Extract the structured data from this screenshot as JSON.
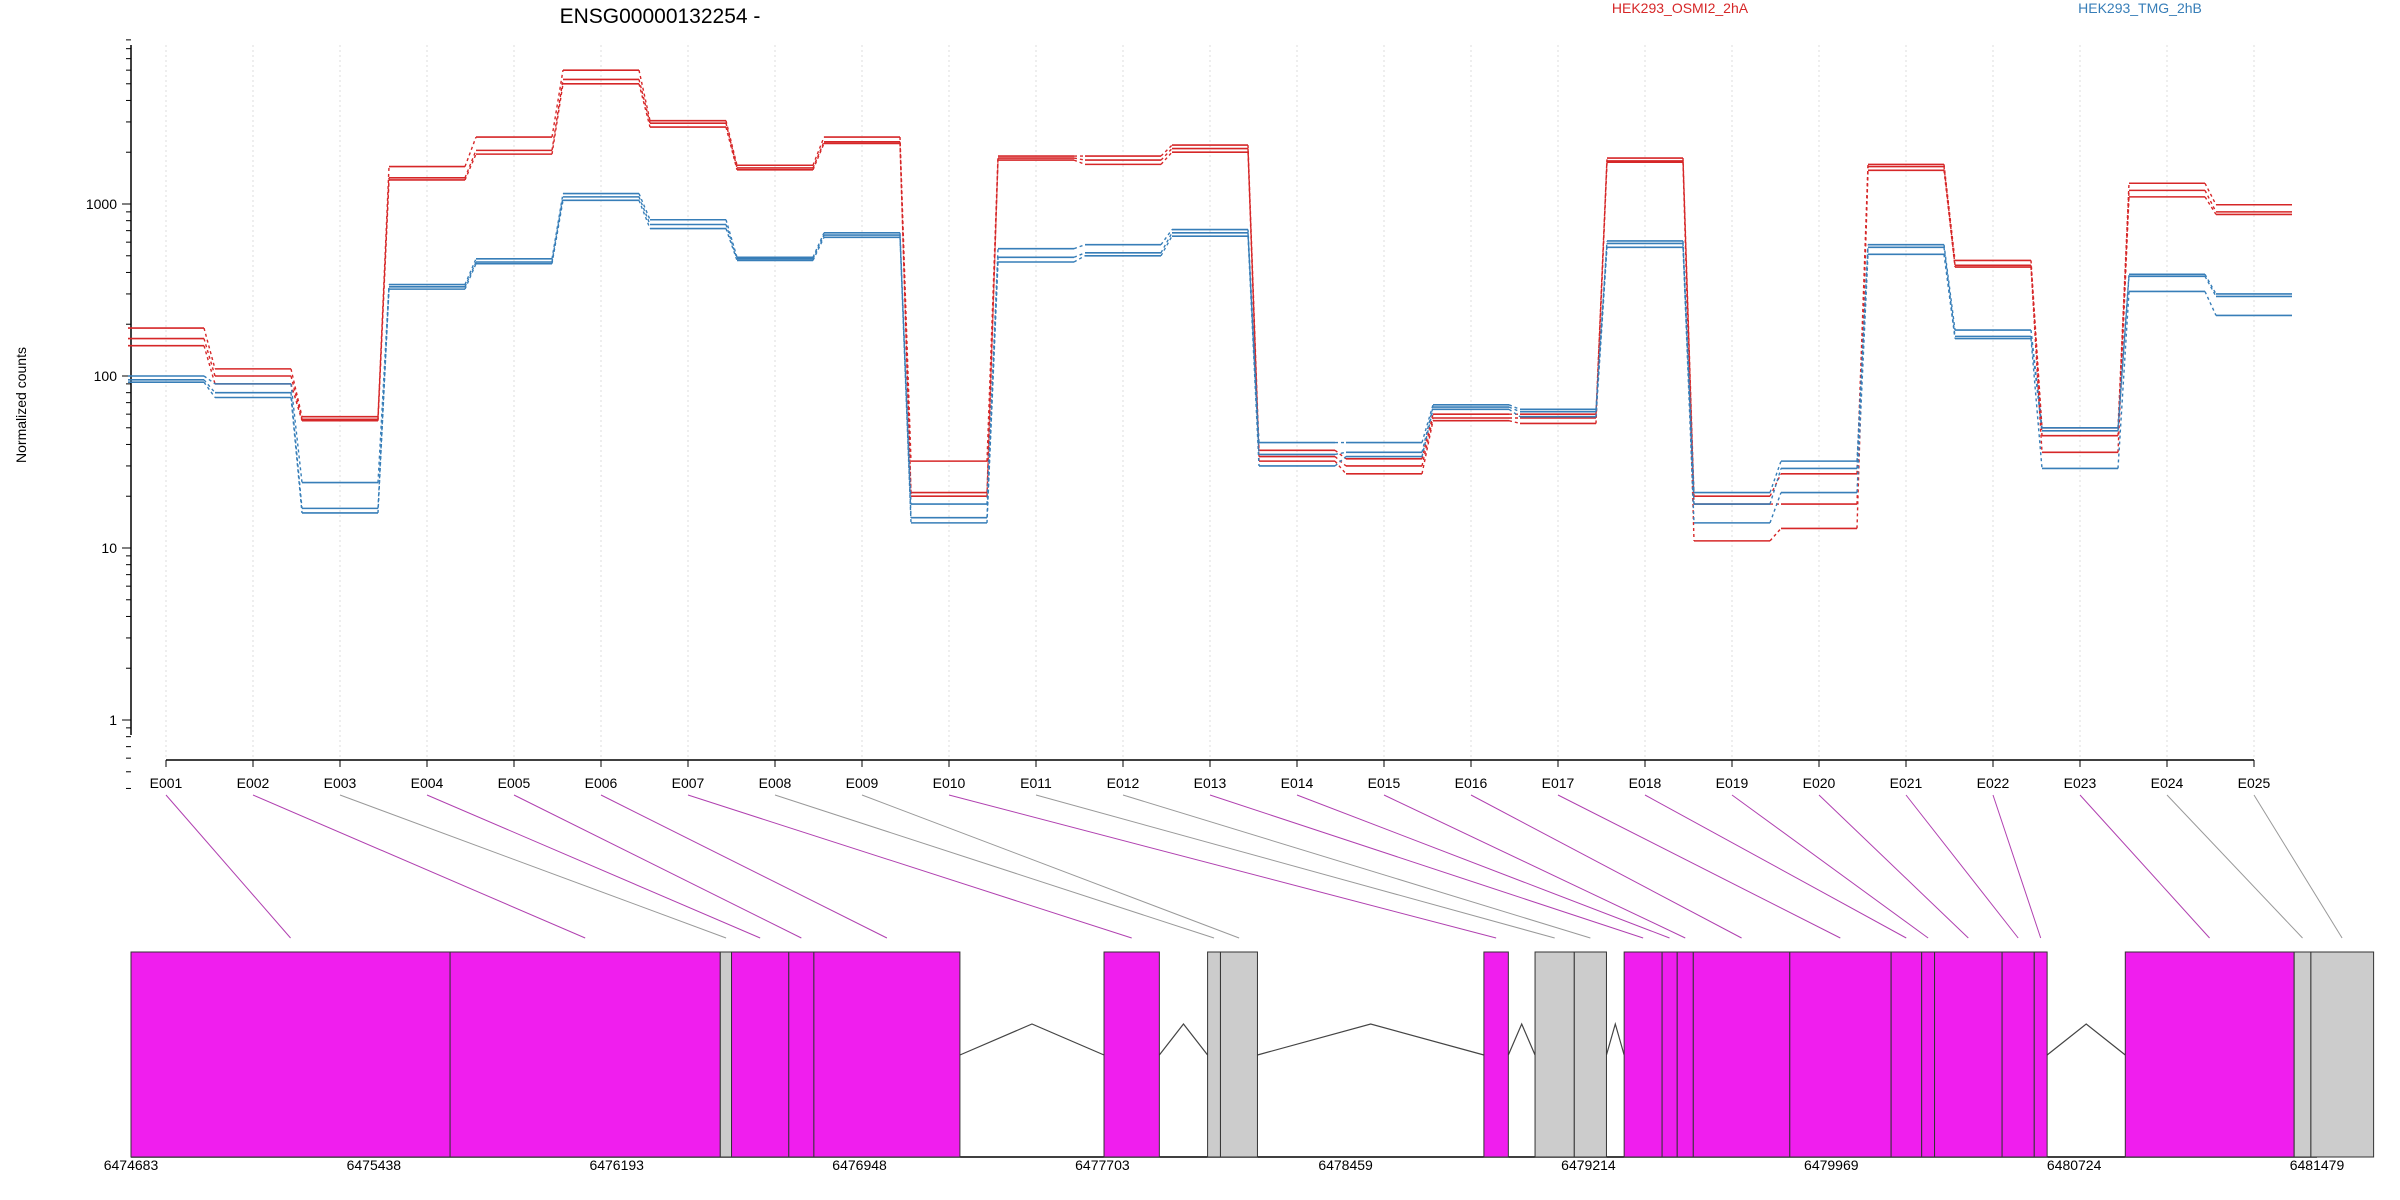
{
  "chart_data": [
    {
      "type": "line",
      "title": "ENSG00000132254 -",
      "xlabel": "",
      "ylabel": "Normalized counts",
      "yscale": "log",
      "ylim": [
        0.35,
        9000
      ],
      "y_ticks": [
        1,
        10,
        100,
        1000
      ],
      "y_tick_labels": [
        "1",
        "10",
        "100",
        "1000"
      ],
      "grid": "vertical-dotted",
      "legend_placement": "top",
      "categories": [
        "E001",
        "E002",
        "E003",
        "E004",
        "E005",
        "E006",
        "E007",
        "E008",
        "E009",
        "E010",
        "E011",
        "E012",
        "E013",
        "E014",
        "E015",
        "E016",
        "E017",
        "E018",
        "E019",
        "E020",
        "E021",
        "E022",
        "E023",
        "E024",
        "E025"
      ],
      "groups": [
        {
          "name": "HEK293_OSMI2_2hA",
          "color": "#d62728",
          "series": [
            {
              "values": [
                190,
                110,
                58,
                1650,
                2450,
                6000,
                3050,
                1680,
                2450,
                32,
                1900,
                1900,
                2200,
                37,
                33,
                60,
                60,
                1850,
                20,
                27,
                1700,
                470,
                50,
                1320,
                990
              ]
            },
            {
              "values": [
                165,
                100,
                56,
                1420,
                2050,
                5300,
                2950,
                1620,
                2300,
                21,
                1850,
                1800,
                2100,
                34,
                30,
                57,
                57,
                1780,
                18,
                18,
                1650,
                440,
                45,
                1200,
                900
              ]
            },
            {
              "values": [
                150,
                90,
                55,
                1380,
                1950,
                5000,
                2800,
                1580,
                2250,
                20,
                1800,
                1700,
                2000,
                32,
                27,
                55,
                53,
                1750,
                11,
                13,
                1570,
                430,
                36,
                1100,
                870
              ]
            }
          ]
        },
        {
          "name": "HEK293_TMG_2hB",
          "color": "#377eb8",
          "series": [
            {
              "values": [
                100,
                90,
                24,
                340,
                480,
                1150,
                810,
                490,
                680,
                18,
                550,
                580,
                710,
                41,
                41,
                68,
                64,
                610,
                21,
                32,
                580,
                185,
                50,
                390,
                300
              ]
            },
            {
              "values": [
                95,
                80,
                17,
                330,
                460,
                1100,
                760,
                480,
                660,
                15,
                490,
                520,
                680,
                35,
                36,
                66,
                62,
                590,
                18,
                29,
                560,
                170,
                48,
                380,
                290
              ]
            },
            {
              "values": [
                92,
                75,
                16,
                320,
                450,
                1050,
                720,
                470,
                640,
                14,
                460,
                500,
                650,
                30,
                34,
                64,
                58,
                560,
                14,
                21,
                510,
                165,
                29,
                310,
                225
              ]
            }
          ]
        }
      ]
    },
    {
      "type": "gene-model",
      "x_ticks": [
        6474683,
        6475438,
        6476193,
        6476948,
        6477703,
        6478459,
        6479214,
        6479969,
        6480724,
        6481479
      ],
      "x_tick_labels": [
        "6474683",
        "6475438",
        "6476193",
        "6476948",
        "6477703",
        "6478459",
        "6479214",
        "6479969",
        "6480724",
        "6481479"
      ],
      "xlim": [
        6474683,
        6481479
      ],
      "colors": {
        "tested": "#f01eee",
        "not_tested": "#cccccc",
        "connector_tested": "#b040b0",
        "connector_other": "#999999",
        "outline": "#333333"
      },
      "exon_blocks": [
        {
          "start": 6474683,
          "end": 6475675,
          "tested": true
        },
        {
          "start": 6475675,
          "end": 6476515,
          "tested": true
        },
        {
          "start": 6476515,
          "end": 6476550,
          "tested": false
        },
        {
          "start": 6476550,
          "end": 6476728,
          "tested": true
        },
        {
          "start": 6476728,
          "end": 6476806,
          "tested": true
        },
        {
          "start": 6476806,
          "end": 6477260,
          "tested": true
        },
        {
          "start": 6477708,
          "end": 6477880,
          "tested": true
        },
        {
          "start": 6478030,
          "end": 6478070,
          "tested": false
        },
        {
          "start": 6478070,
          "end": 6478185,
          "tested": false
        },
        {
          "start": 6478889,
          "end": 6478965,
          "tested": true
        },
        {
          "start": 6479048,
          "end": 6479170,
          "tested": false
        },
        {
          "start": 6479170,
          "end": 6479270,
          "tested": false
        },
        {
          "start": 6479325,
          "end": 6479443,
          "tested": true
        },
        {
          "start": 6479443,
          "end": 6479490,
          "tested": true
        },
        {
          "start": 6479490,
          "end": 6479540,
          "tested": true
        },
        {
          "start": 6479540,
          "end": 6479840,
          "tested": true
        },
        {
          "start": 6479840,
          "end": 6480155,
          "tested": true
        },
        {
          "start": 6480155,
          "end": 6480250,
          "tested": true
        },
        {
          "start": 6480250,
          "end": 6480290,
          "tested": true
        },
        {
          "start": 6480290,
          "end": 6480500,
          "tested": true
        },
        {
          "start": 6480500,
          "end": 6480600,
          "tested": true
        },
        {
          "start": 6480600,
          "end": 6480640,
          "tested": true
        },
        {
          "start": 6480883,
          "end": 6481408,
          "tested": true
        },
        {
          "start": 6481408,
          "end": 6481460,
          "tested": false
        },
        {
          "start": 6481460,
          "end": 6481655,
          "tested": false
        }
      ],
      "introns": [
        {
          "start": 6477260,
          "end": 6477708
        },
        {
          "start": 6477880,
          "end": 6478030
        },
        {
          "start": 6478185,
          "end": 6478889
        },
        {
          "start": 6478965,
          "end": 6479048
        },
        {
          "start": 6479270,
          "end": 6479325
        },
        {
          "start": 6480640,
          "end": 6480883
        }
      ],
      "exon_mapping": [
        {
          "exon": "E001",
          "pos": 6475179,
          "tested": true
        },
        {
          "exon": "E002",
          "pos": 6476095,
          "tested": true
        },
        {
          "exon": "E003",
          "pos": 6476533,
          "tested": false
        },
        {
          "exon": "E004",
          "pos": 6476639,
          "tested": true
        },
        {
          "exon": "E005",
          "pos": 6476767,
          "tested": true
        },
        {
          "exon": "E006",
          "pos": 6477033,
          "tested": true
        },
        {
          "exon": "E007",
          "pos": 6477794,
          "tested": true
        },
        {
          "exon": "E008",
          "pos": 6478050,
          "tested": false
        },
        {
          "exon": "E009",
          "pos": 6478128,
          "tested": false
        },
        {
          "exon": "E010",
          "pos": 6478927,
          "tested": true
        },
        {
          "exon": "E011",
          "pos": 6479109,
          "tested": false
        },
        {
          "exon": "E012",
          "pos": 6479220,
          "tested": false
        },
        {
          "exon": "E013",
          "pos": 6479384,
          "tested": true
        },
        {
          "exon": "E014",
          "pos": 6479466,
          "tested": true
        },
        {
          "exon": "E015",
          "pos": 6479515,
          "tested": true
        },
        {
          "exon": "E016",
          "pos": 6479690,
          "tested": true
        },
        {
          "exon": "E017",
          "pos": 6479997,
          "tested": true
        },
        {
          "exon": "E018",
          "pos": 6480202,
          "tested": true
        },
        {
          "exon": "E019",
          "pos": 6480270,
          "tested": true
        },
        {
          "exon": "E020",
          "pos": 6480395,
          "tested": true
        },
        {
          "exon": "E021",
          "pos": 6480550,
          "tested": true
        },
        {
          "exon": "E022",
          "pos": 6480620,
          "tested": true
        },
        {
          "exon": "E023",
          "pos": 6481145,
          "tested": true
        },
        {
          "exon": "E024",
          "pos": 6481434,
          "tested": false
        },
        {
          "exon": "E025",
          "pos": 6481557,
          "tested": false
        }
      ]
    }
  ]
}
